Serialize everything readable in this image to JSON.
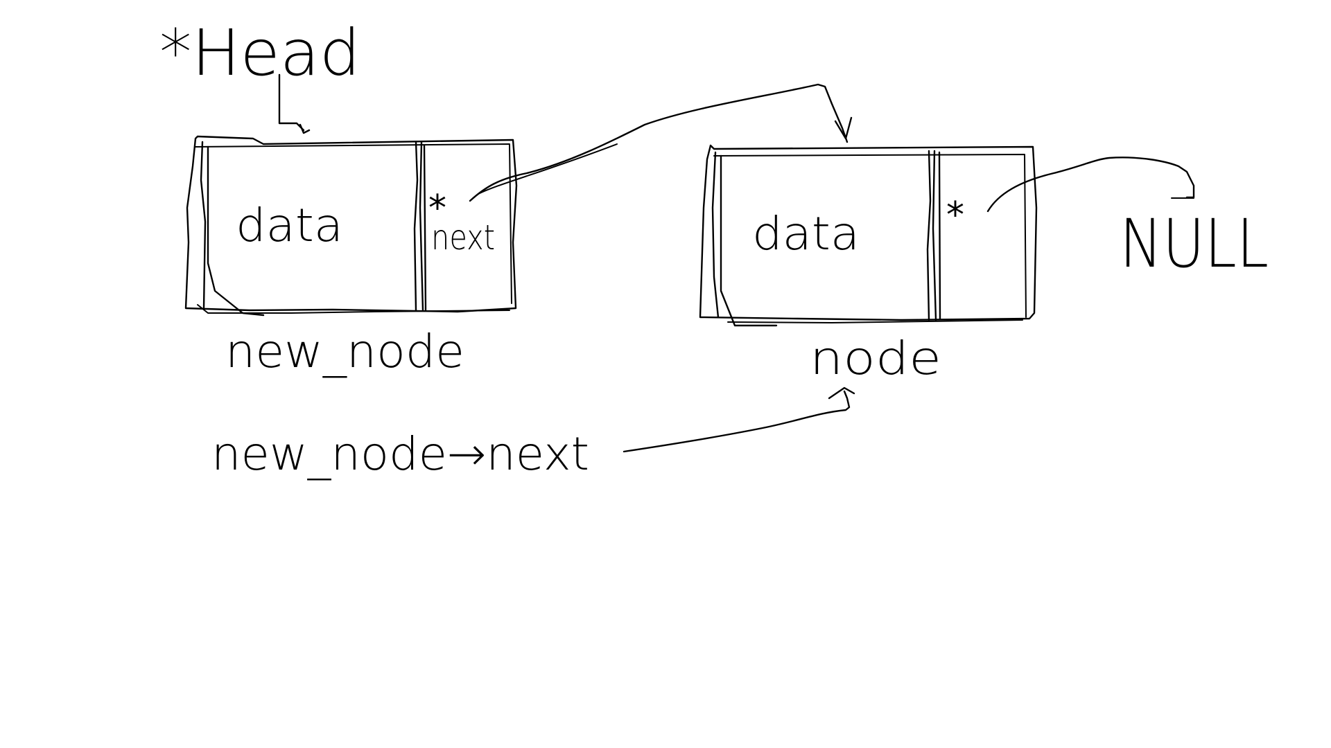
{
  "labels": {
    "head": "*Head",
    "node1_data": "data",
    "node1_ptr_star": "*",
    "node1_ptr_name": "next",
    "node1_caption": "new_node",
    "node2_data": "data",
    "node2_ptr_star": "*",
    "node2_caption": "node",
    "null": "NULL",
    "annotation": "new_node→next"
  },
  "colors": {
    "background": "#ffffff",
    "ink": "#000000"
  }
}
